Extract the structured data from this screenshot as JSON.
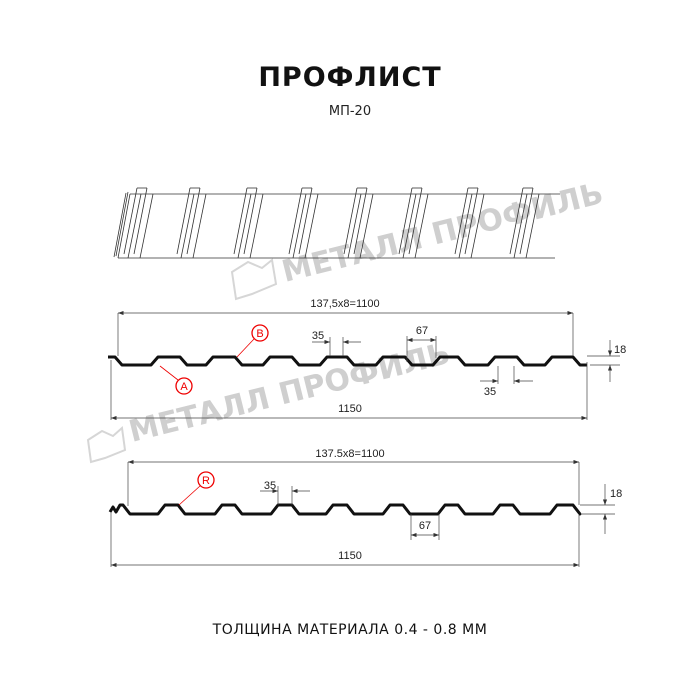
{
  "header": {
    "title": "ПРОФЛИСТ",
    "subtitle": "МП-20"
  },
  "watermark": {
    "text": "МЕТАЛЛ ПРОФИЛЬ"
  },
  "profile_top": {
    "pitch_dim": "137,5x8=1100",
    "width_dim": "1150",
    "rib_top_dim": "35",
    "rib_bottom_top_dim": "67",
    "rib_lower_dim": "35",
    "height_dim": "18",
    "marker_a": "A",
    "marker_b": "B"
  },
  "profile_bottom": {
    "pitch_dim": "137.5x8=1100",
    "width_dim": "1150",
    "rib_top_dim": "35",
    "rib_bottom_dim": "67",
    "height_dim": "18",
    "marker_r": "R"
  },
  "footer": {
    "thickness": "ТОЛЩИНА МАТЕРИАЛА 0.4 - 0.8 ММ"
  },
  "colors": {
    "line": "#111111",
    "dim": "#333333",
    "marker": "#e00000",
    "watermark": "#cfcfcf"
  }
}
